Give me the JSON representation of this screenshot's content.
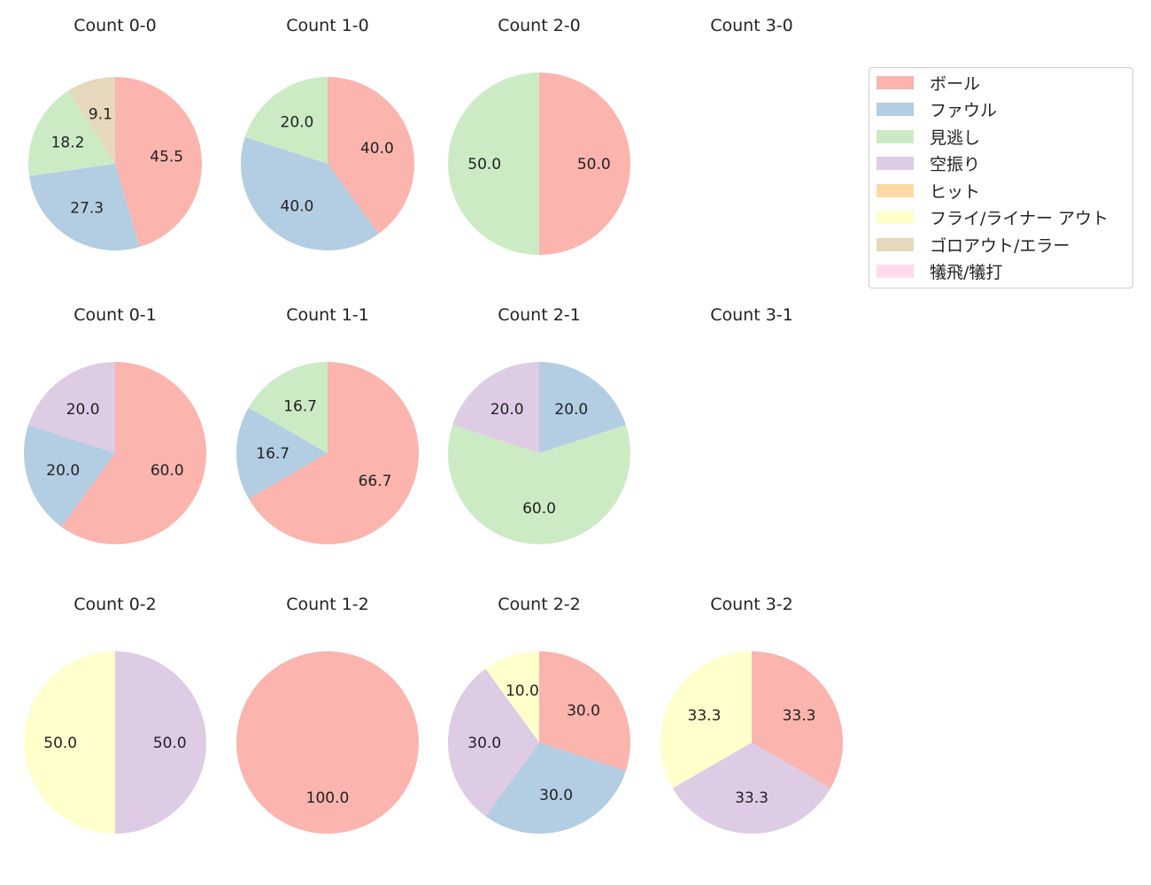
{
  "chart_data": {
    "type": "pie",
    "legend": {
      "placement": "top-right",
      "entries": [
        "ボール",
        "ファウル",
        "見逃し",
        "空振り",
        "ヒット",
        "フライ/ライナー アウト",
        "ゴロアウト/エラー",
        "犠飛/犠打"
      ]
    },
    "colors": [
      "#fbb4ae",
      "#b3cde3",
      "#ccebc5",
      "#decbe4",
      "#fed9a6",
      "#ffffcc",
      "#e5d8bd",
      "#fddaec"
    ],
    "start_angle": 90,
    "direction": "clockwise",
    "pies": [
      {
        "title": "Count 0-0",
        "slices": [
          {
            "category": "ボール",
            "value": 45.5
          },
          {
            "category": "ファウル",
            "value": 27.3
          },
          {
            "category": "見逃し",
            "value": 18.2
          },
          {
            "category": "ゴロアウト/エラー",
            "value": 9.1
          }
        ]
      },
      {
        "title": "Count 1-0",
        "slices": [
          {
            "category": "ボール",
            "value": 40.0
          },
          {
            "category": "ファウル",
            "value": 40.0
          },
          {
            "category": "見逃し",
            "value": 20.0
          }
        ]
      },
      {
        "title": "Count 2-0",
        "slices": [
          {
            "category": "ボール",
            "value": 50.0
          },
          {
            "category": "見逃し",
            "value": 50.0
          }
        ]
      },
      {
        "title": "Count 3-0",
        "slices": []
      },
      {
        "title": "Count 0-1",
        "slices": [
          {
            "category": "ボール",
            "value": 60.0
          },
          {
            "category": "ファウル",
            "value": 20.0
          },
          {
            "category": "空振り",
            "value": 20.0
          }
        ]
      },
      {
        "title": "Count 1-1",
        "slices": [
          {
            "category": "ボール",
            "value": 66.7
          },
          {
            "category": "ファウル",
            "value": 16.7
          },
          {
            "category": "見逃し",
            "value": 16.7
          }
        ]
      },
      {
        "title": "Count 2-1",
        "slices": [
          {
            "category": "ファウル",
            "value": 20.0
          },
          {
            "category": "見逃し",
            "value": 60.0
          },
          {
            "category": "空振り",
            "value": 20.0
          }
        ]
      },
      {
        "title": "Count 3-1",
        "slices": []
      },
      {
        "title": "Count 0-2",
        "slices": [
          {
            "category": "空振り",
            "value": 50.0
          },
          {
            "category": "フライ/ライナー アウト",
            "value": 50.0
          }
        ]
      },
      {
        "title": "Count 1-2",
        "slices": [
          {
            "category": "ボール",
            "value": 100.0
          }
        ]
      },
      {
        "title": "Count 2-2",
        "slices": [
          {
            "category": "ボール",
            "value": 30.0
          },
          {
            "category": "ファウル",
            "value": 30.0
          },
          {
            "category": "空振り",
            "value": 30.0
          },
          {
            "category": "フライ/ライナー アウト",
            "value": 10.0
          }
        ]
      },
      {
        "title": "Count 3-2",
        "slices": [
          {
            "category": "ボール",
            "value": 33.3
          },
          {
            "category": "空振り",
            "value": 33.3
          },
          {
            "category": "フライ/ライナー アウト",
            "value": 33.3
          }
        ]
      }
    ]
  }
}
